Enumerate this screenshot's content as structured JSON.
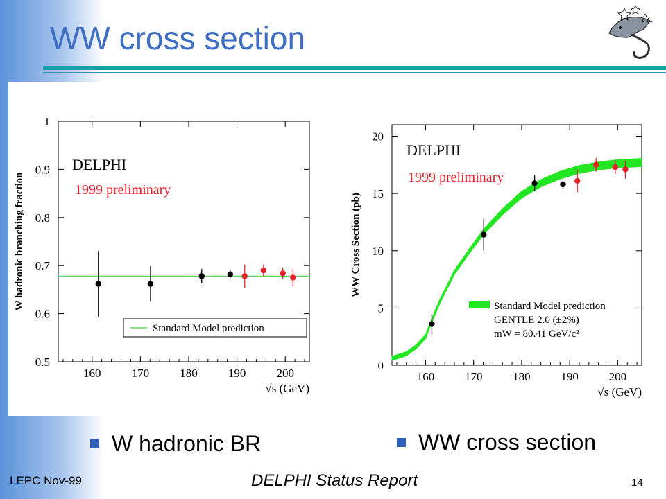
{
  "slide": {
    "title": "WW cross section",
    "footer_left": "LEPC Nov-99",
    "footer_center": "DELPHI Status Report",
    "page_number": "14",
    "bullets": [
      "W hadronic BR",
      "WW cross section"
    ],
    "colors": {
      "title": "#3f6fc4",
      "rule": "#19a0a8",
      "bullet": "#2f5fb8",
      "band": "#5b92d8"
    },
    "logo_icon": "dolphin-logo-icon"
  },
  "chart_data": [
    {
      "type": "scatter",
      "ylabel": "W hadronic branching fraction",
      "xlabel": "√s (GeV)",
      "xticks": [
        "160",
        "170",
        "180",
        "190",
        "200"
      ],
      "yticks": [
        "0.5",
        "0.6",
        "0.7",
        "0.8",
        "0.9",
        "1"
      ],
      "xlim": [
        153,
        205
      ],
      "ylim": [
        0.5,
        1.0
      ],
      "annotations": [
        "DELPHI",
        "1999 preliminary"
      ],
      "series": [
        {
          "color": "#000000",
          "x": [
            161.3,
            172.1,
            182.7,
            188.6
          ],
          "y": [
            0.662,
            0.662,
            0.678,
            0.682
          ],
          "err": [
            0.068,
            0.037,
            0.015,
            0.008
          ]
        },
        {
          "color": "#e8212b",
          "x": [
            191.6,
            195.5,
            199.5,
            201.6
          ],
          "y": [
            0.678,
            0.69,
            0.684,
            0.675
          ],
          "err": [
            0.024,
            0.012,
            0.012,
            0.018
          ]
        }
      ],
      "reference_line": {
        "name": "Standard Model prediction",
        "y": 0.678,
        "color": "#63d463"
      },
      "legend_position": "bottom-right"
    },
    {
      "type": "scatter",
      "ylabel": "WW Cross Section (pb)",
      "xlabel": "√s (GeV)",
      "xticks": [
        "160",
        "170",
        "180",
        "190",
        "200"
      ],
      "yticks": [
        "0",
        "5",
        "10",
        "15",
        "20"
      ],
      "xlim": [
        153,
        205
      ],
      "ylim": [
        0,
        21
      ],
      "annotations": [
        "DELPHI",
        "1999 preliminary"
      ],
      "series": [
        {
          "color": "#000000",
          "x": [
            161.3,
            172.1,
            182.7,
            188.6
          ],
          "y": [
            3.6,
            11.4,
            15.9,
            15.8
          ],
          "err": [
            0.9,
            1.4,
            0.7,
            0.4
          ]
        },
        {
          "color": "#e8212b",
          "x": [
            191.6,
            195.5,
            199.5,
            201.6
          ],
          "y": [
            16.1,
            17.5,
            17.3,
            17.1
          ],
          "err": [
            1.0,
            0.6,
            0.6,
            0.8
          ]
        }
      ],
      "band": {
        "name": "Standard Model prediction",
        "color": "#22e622",
        "relative_width": 0.02,
        "x": [
          153,
          156,
          158,
          160,
          161,
          163,
          166,
          169,
          172,
          176,
          180,
          184,
          188,
          192,
          196,
          200,
          205
        ],
        "y": [
          0.6,
          1.0,
          1.6,
          2.5,
          3.6,
          5.6,
          8.1,
          9.9,
          11.6,
          13.4,
          14.9,
          15.9,
          16.6,
          17.1,
          17.4,
          17.6,
          17.7
        ]
      },
      "legend_lines": [
        "Standard Model prediction",
        "GENTLE 2.0 (±2%)",
        "mW = 80.41 GeV/c²"
      ],
      "legend_position": "bottom-right"
    }
  ]
}
